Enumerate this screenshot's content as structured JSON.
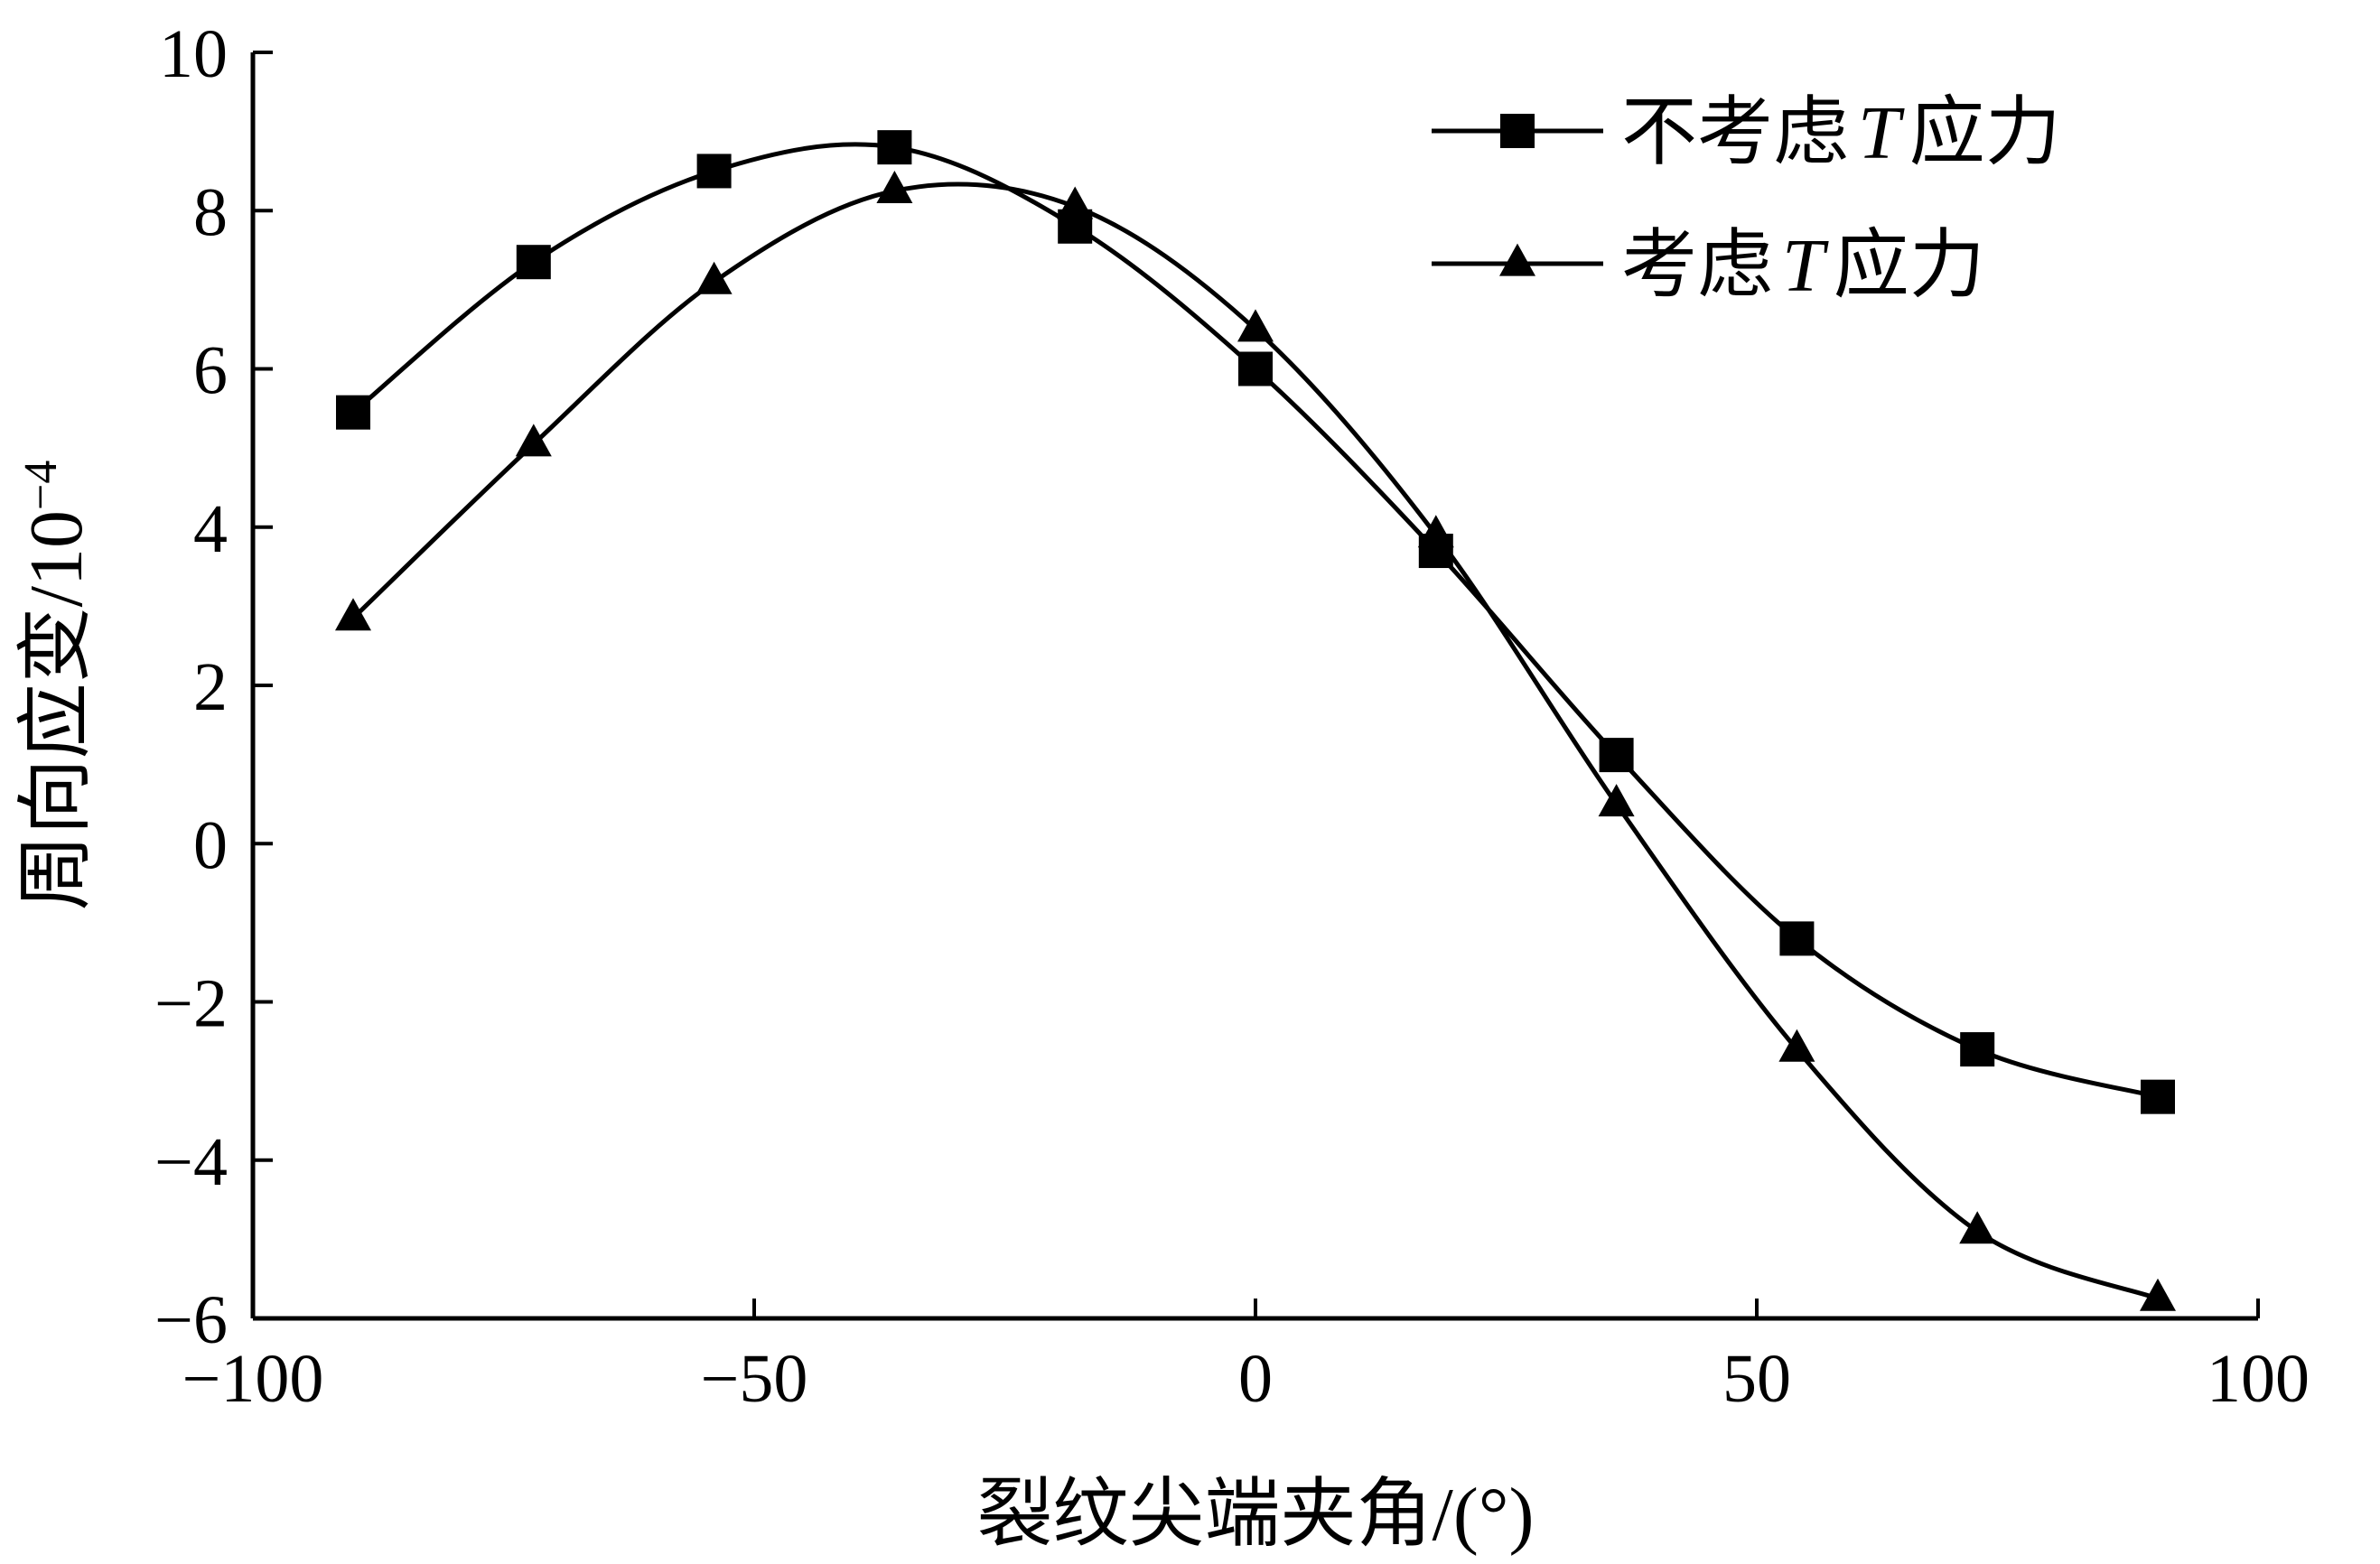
{
  "chart_data": {
    "type": "line",
    "xlabel": "裂纹尖端夹角/(°)",
    "ylabel": "周向应变/10",
    "ylabel_exponent": "−4",
    "xlim": [
      -100,
      100
    ],
    "ylim": [
      -6,
      10
    ],
    "xticks": [
      -100,
      -50,
      0,
      50,
      100
    ],
    "yticks": [
      -6,
      -4,
      -2,
      0,
      2,
      4,
      6,
      8,
      10
    ],
    "xtick_labels": [
      "−100",
      "−50",
      "0",
      "50",
      "100"
    ],
    "ytick_labels": [
      "−6",
      "−4",
      "−2",
      "0",
      "2",
      "4",
      "6",
      "8",
      "10"
    ],
    "grid": false,
    "legend_position": "top-right",
    "series": [
      {
        "name": "不考虑T应力",
        "name_parts": [
          "不考虑",
          "T",
          "应力"
        ],
        "marker": "square",
        "x": [
          -90,
          -72,
          -54,
          -36,
          -18,
          0,
          18,
          36,
          54,
          72,
          90
        ],
        "y": [
          5.45,
          7.35,
          8.5,
          8.8,
          7.8,
          6.0,
          3.7,
          1.12,
          -1.2,
          -2.6,
          -3.2
        ]
      },
      {
        "name": "考虑T应力",
        "name_parts": [
          "考虑",
          "T",
          "应力"
        ],
        "marker": "triangle",
        "x": [
          -90,
          -72,
          -54,
          -36,
          -18,
          0,
          18,
          36,
          54,
          72,
          90
        ],
        "y": [
          2.85,
          5.05,
          7.1,
          8.25,
          8.05,
          6.5,
          3.9,
          0.5,
          -2.6,
          -4.9,
          -5.75
        ]
      }
    ]
  }
}
